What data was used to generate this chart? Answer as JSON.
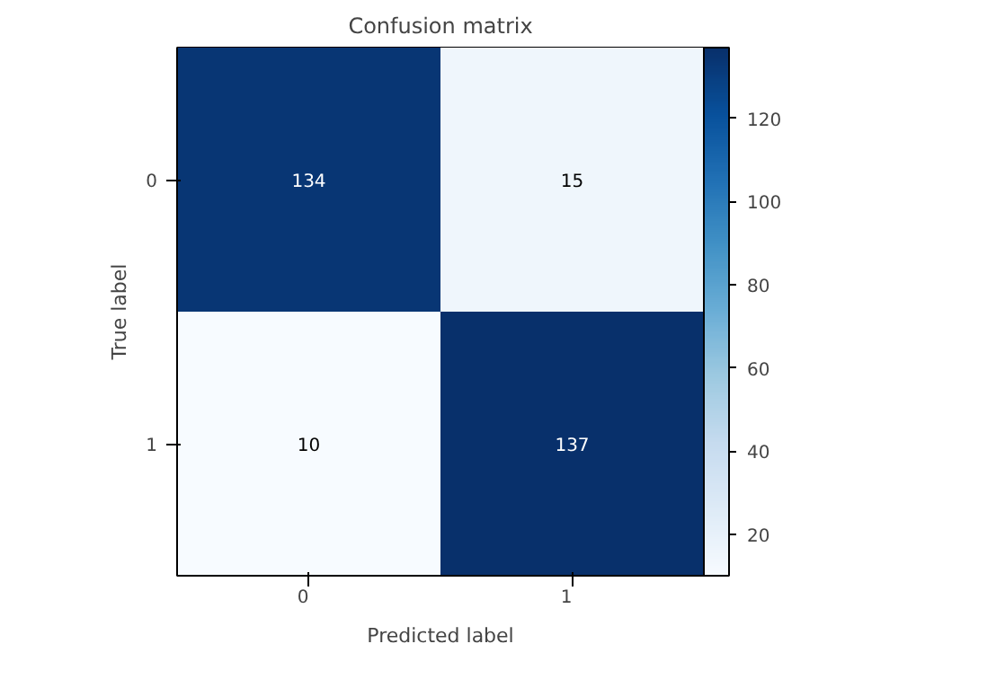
{
  "chart_data": {
    "type": "heatmap",
    "title": "Confusion matrix",
    "xlabel": "Predicted label",
    "ylabel": "True label",
    "categories": [
      "0",
      "1"
    ],
    "y_categories": [
      "0",
      "1"
    ],
    "cells": [
      [
        134,
        15
      ],
      [
        10,
        137
      ]
    ],
    "clim": [
      10,
      137
    ],
    "cticks": [
      20,
      40,
      60,
      80,
      100,
      120
    ],
    "data_labels": true
  }
}
